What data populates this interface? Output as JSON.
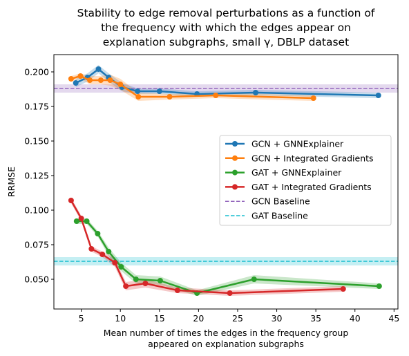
{
  "chart_data": {
    "type": "line",
    "title": [
      "Stability to edge removal perturbations as a function of",
      "the frequency with which the edges appear on",
      "explanation subgraphs, small γ, DBLP dataset"
    ],
    "xlabel": [
      "Mean number of times the edges in the frequency group",
      "appeared on explanation subgraphs"
    ],
    "ylabel": "RRMSE",
    "xlim": [
      1.5,
      45.5
    ],
    "ylim": [
      0.0285,
      0.2125
    ],
    "xticks": [
      5,
      10,
      15,
      20,
      25,
      30,
      35,
      40,
      45
    ],
    "yticks": [
      0.05,
      0.075,
      0.1,
      0.125,
      0.15,
      0.175,
      0.2
    ],
    "ytick_labels": [
      "0.050",
      "0.075",
      "0.100",
      "0.125",
      "0.150",
      "0.175",
      "0.200"
    ],
    "grid": false,
    "legend_position": "center-right",
    "series": [
      {
        "name": "GCN + GNNExplainer",
        "color": "#1f77b4",
        "x": [
          4.3,
          5.8,
          7.2,
          8.5,
          10.2,
          12.2,
          15.0,
          19.8,
          27.3,
          43.0
        ],
        "y": [
          0.192,
          0.196,
          0.202,
          0.196,
          0.189,
          0.186,
          0.186,
          0.184,
          0.185,
          0.183
        ],
        "band": [
          0.003,
          0.003,
          0.003,
          0.003,
          0.003,
          0.002,
          0.002,
          0.002,
          0.002,
          0.002
        ]
      },
      {
        "name": "GCN + Integrated Gradients",
        "color": "#ff7f0e",
        "x": [
          3.7,
          4.9,
          6.1,
          7.5,
          8.7,
          10.0,
          12.3,
          16.3,
          22.2,
          34.7
        ],
        "y": [
          0.195,
          0.197,
          0.194,
          0.194,
          0.194,
          0.191,
          0.182,
          0.182,
          0.183,
          0.181
        ],
        "band": [
          0.002,
          0.002,
          0.003,
          0.003,
          0.004,
          0.004,
          0.003,
          0.002,
          0.002,
          0.002
        ]
      },
      {
        "name": "GAT + GNNExplainer",
        "color": "#2ca02c",
        "x": [
          4.4,
          5.7,
          7.1,
          8.5,
          10.1,
          12.0,
          15.1,
          19.8,
          27.1,
          43.1
        ],
        "y": [
          0.092,
          0.092,
          0.083,
          0.07,
          0.059,
          0.05,
          0.049,
          0.04,
          0.05,
          0.045
        ],
        "band": [
          0.002,
          0.002,
          0.002,
          0.003,
          0.003,
          0.003,
          0.003,
          0.002,
          0.003,
          0.002
        ]
      },
      {
        "name": "GAT + Integrated Gradients",
        "color": "#d62728",
        "x": [
          3.7,
          5.0,
          6.3,
          7.7,
          9.3,
          10.7,
          13.2,
          17.3,
          24.0,
          38.5
        ],
        "y": [
          0.107,
          0.094,
          0.072,
          0.068,
          0.062,
          0.045,
          0.047,
          0.042,
          0.04,
          0.043
        ],
        "band": [
          0.002,
          0.002,
          0.002,
          0.002,
          0.003,
          0.003,
          0.003,
          0.002,
          0.002,
          0.002
        ]
      }
    ],
    "baselines": [
      {
        "name": "GCN Baseline",
        "color": "#9467bd",
        "y": 0.188,
        "band": [
          0.185,
          0.191
        ]
      },
      {
        "name": "GAT Baseline",
        "color": "#17becf",
        "y": 0.063,
        "band": [
          0.06,
          0.066
        ]
      }
    ]
  }
}
